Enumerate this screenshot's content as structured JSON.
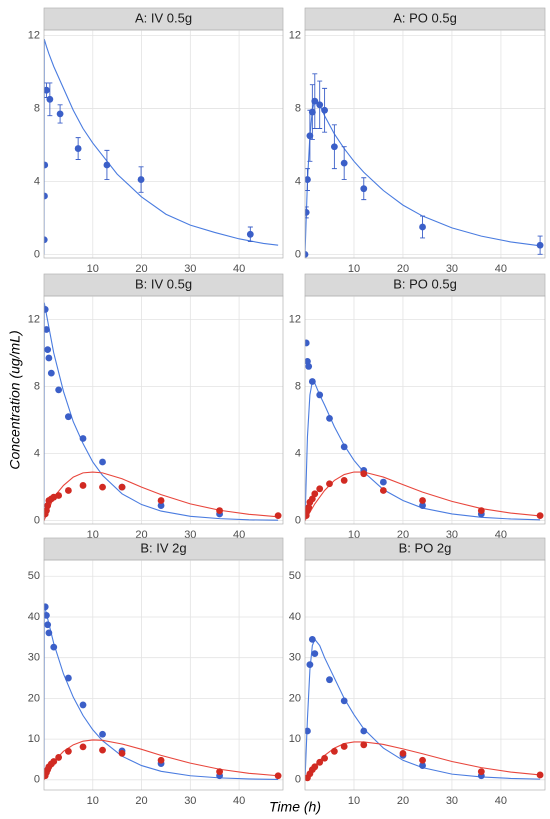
{
  "xlabel": "Time (h)",
  "ylabel": "Concentration (ug/mL)",
  "chart_data": [
    {
      "type": "scatter",
      "title": "A: IV 0.5g",
      "xlim": [
        0,
        49
      ],
      "xticks": [
        10,
        20,
        30,
        40
      ],
      "ylim": [
        -0.2,
        12.3
      ],
      "yticks": [
        0,
        4,
        8,
        12
      ],
      "grid": true,
      "series": [
        {
          "mode": "line",
          "color": "#4a7ce0",
          "x": [
            0,
            0.05,
            0.5,
            1,
            2,
            4,
            6,
            8,
            10,
            15,
            20,
            25,
            30,
            35,
            40,
            45,
            48
          ],
          "values": [
            0,
            11.8,
            11.4,
            11.0,
            10.3,
            9.1,
            7.9,
            6.9,
            6.1,
            4.4,
            3.15,
            2.2,
            1.6,
            1.2,
            0.85,
            0.6,
            0.5
          ]
        },
        {
          "mode": "points",
          "color": "#3b5fc8",
          "x": [
            0.05,
            0.1,
            0.15,
            0.5,
            1.2,
            3.3,
            7,
            12.9,
            19.9,
            42.3
          ],
          "values": [
            0.8,
            3.2,
            4.9,
            9.0,
            8.5,
            7.7,
            5.8,
            4.9,
            4.1,
            1.1
          ],
          "errors": [
            0,
            0,
            0,
            0.4,
            0.9,
            0.5,
            0.6,
            0.8,
            0.7,
            0.4
          ]
        }
      ]
    },
    {
      "type": "scatter",
      "title": "A: PO 0.5g",
      "xlim": [
        0,
        49
      ],
      "xticks": [
        10,
        20,
        30,
        40
      ],
      "ylim": [
        -0.2,
        12.3
      ],
      "yticks": [
        0,
        4,
        8,
        12
      ],
      "grid": true,
      "series": [
        {
          "mode": "line",
          "color": "#4a7ce0",
          "x": [
            0,
            0.5,
            1,
            1.5,
            2,
            3,
            4,
            6,
            8,
            10,
            12,
            16,
            20,
            24,
            30,
            36,
            42,
            48
          ],
          "values": [
            0,
            4.0,
            6.5,
            7.9,
            8.5,
            8.2,
            7.6,
            6.6,
            5.8,
            5.1,
            4.5,
            3.5,
            2.7,
            2.1,
            1.45,
            1.0,
            0.68,
            0.47
          ]
        },
        {
          "mode": "points",
          "color": "#3b5fc8",
          "x": [
            0,
            0.25,
            0.5,
            1,
            1.5,
            2,
            3,
            4,
            6,
            8,
            12,
            24,
            48
          ],
          "values": [
            0,
            2.3,
            4.1,
            6.5,
            7.8,
            8.4,
            8.2,
            7.9,
            5.9,
            5.0,
            3.6,
            1.5,
            0.5
          ],
          "errors": [
            0,
            0.3,
            0.6,
            1.4,
            1.5,
            1.5,
            1.3,
            1.2,
            1.2,
            0.9,
            0.6,
            0.6,
            0.5
          ]
        }
      ]
    },
    {
      "type": "scatter",
      "title": "B: IV 0.5g",
      "xlim": [
        0,
        49
      ],
      "xticks": [
        10,
        20,
        30,
        40
      ],
      "ylim": [
        -0.2,
        13.4
      ],
      "yticks": [
        0,
        4,
        8,
        12
      ],
      "grid": true,
      "series": [
        {
          "mode": "line",
          "color": "#4a7ce0",
          "x": [
            0,
            0.05,
            2,
            4,
            6,
            8,
            10,
            12,
            16,
            20,
            24,
            30,
            36,
            42,
            48
          ],
          "values": [
            0,
            13,
            10,
            7.7,
            5.9,
            4.6,
            3.5,
            2.7,
            1.6,
            0.96,
            0.57,
            0.26,
            0.12,
            0.05,
            0.025
          ]
        },
        {
          "mode": "line",
          "color": "#e8463c",
          "x": [
            0,
            2,
            4,
            6,
            8,
            10,
            12,
            16,
            20,
            24,
            30,
            36,
            42,
            48
          ],
          "values": [
            0,
            1.4,
            2.1,
            2.6,
            2.85,
            2.9,
            2.85,
            2.5,
            2.0,
            1.55,
            1.0,
            0.62,
            0.38,
            0.23
          ]
        },
        {
          "mode": "points",
          "color": "#3b5fc8",
          "x": [
            0.25,
            0.5,
            0.75,
            1,
            1.5,
            3,
            5,
            8,
            12,
            16,
            24,
            36
          ],
          "values": [
            12.6,
            11.4,
            10.2,
            9.7,
            8.8,
            7.8,
            6.2,
            4.9,
            3.5,
            2.0,
            0.9,
            0.4
          ]
        },
        {
          "mode": "points",
          "color": "#d12a22",
          "x": [
            0.25,
            0.5,
            0.75,
            1,
            1.5,
            2,
            3,
            5,
            8,
            12,
            16,
            24,
            36,
            48
          ],
          "values": [
            0.4,
            0.6,
            0.9,
            1.2,
            1.3,
            1.4,
            1.5,
            1.8,
            2.1,
            2.0,
            2.0,
            1.2,
            0.6,
            0.3
          ]
        }
      ]
    },
    {
      "type": "scatter",
      "title": "B: PO 0.5g",
      "xlim": [
        0,
        49
      ],
      "xticks": [
        10,
        20,
        30,
        40
      ],
      "ylim": [
        -0.2,
        13.4
      ],
      "yticks": [
        0,
        4,
        8,
        12
      ],
      "grid": true,
      "series": [
        {
          "mode": "line",
          "color": "#4a7ce0",
          "x": [
            0,
            0.5,
            1,
            1.5,
            2,
            3,
            4,
            6,
            8,
            10,
            12,
            16,
            20,
            24,
            30,
            36,
            42,
            48
          ],
          "values": [
            0,
            5,
            7.5,
            8.3,
            8.2,
            7.5,
            6.9,
            5.6,
            4.5,
            3.6,
            2.9,
            1.85,
            1.2,
            0.75,
            0.4,
            0.2,
            0.1,
            0.05
          ]
        },
        {
          "mode": "line",
          "color": "#e8463c",
          "x": [
            0,
            2,
            4,
            6,
            8,
            10,
            12,
            16,
            20,
            24,
            30,
            36,
            42,
            48
          ],
          "values": [
            0,
            1.0,
            1.8,
            2.4,
            2.75,
            2.9,
            2.9,
            2.6,
            2.15,
            1.7,
            1.15,
            0.72,
            0.45,
            0.28
          ]
        },
        {
          "mode": "points",
          "color": "#3b5fc8",
          "x": [
            0.25,
            0.5,
            0.75,
            1.5,
            3,
            5,
            8,
            12,
            16,
            24,
            36
          ],
          "values": [
            10.6,
            9.5,
            9.2,
            8.3,
            7.5,
            6.1,
            4.4,
            3.0,
            2.3,
            0.9,
            0.4
          ]
        },
        {
          "mode": "points",
          "color": "#d12a22",
          "x": [
            0.25,
            0.5,
            0.75,
            1,
            1.5,
            2,
            3,
            5,
            8,
            12,
            16,
            24,
            36,
            48
          ],
          "values": [
            0.3,
            0.6,
            0.8,
            1.1,
            1.3,
            1.6,
            1.9,
            2.2,
            2.4,
            2.8,
            1.8,
            1.2,
            0.6,
            0.3
          ]
        }
      ]
    },
    {
      "type": "scatter",
      "title": "B: IV 2g",
      "xlim": [
        0,
        49
      ],
      "xticks": [
        10,
        20,
        30,
        40
      ],
      "ylim": [
        -2.5,
        54
      ],
      "yticks": [
        0,
        10,
        20,
        30,
        40,
        50
      ],
      "grid": true,
      "series": [
        {
          "mode": "line",
          "color": "#4a7ce0",
          "x": [
            0,
            0.05,
            2,
            4,
            6,
            8,
            10,
            12,
            16,
            20,
            24,
            30,
            36,
            42,
            48
          ],
          "values": [
            0,
            43,
            33.5,
            26,
            20.3,
            15.8,
            12.3,
            9.6,
            5.8,
            3.5,
            2.1,
            1.0,
            0.48,
            0.22,
            0.1
          ]
        },
        {
          "mode": "line",
          "color": "#e8463c",
          "x": [
            0,
            2,
            4,
            6,
            8,
            10,
            12,
            16,
            20,
            24,
            30,
            36,
            42,
            48
          ],
          "values": [
            0,
            4.5,
            7.0,
            8.6,
            9.5,
            9.8,
            9.7,
            8.8,
            7.5,
            6.0,
            4.1,
            2.6,
            1.6,
            1.0
          ]
        },
        {
          "mode": "points",
          "color": "#3b5fc8",
          "x": [
            0.25,
            0.5,
            0.75,
            1,
            2,
            5,
            8,
            12,
            16,
            24,
            36
          ],
          "values": [
            42.5,
            40.4,
            38.1,
            36.1,
            32.6,
            25,
            18.4,
            11.2,
            7.1,
            4.0,
            1.0
          ]
        },
        {
          "mode": "points",
          "color": "#d12a22",
          "x": [
            0.25,
            0.5,
            0.75,
            1,
            1.5,
            2,
            3,
            5,
            8,
            12,
            16,
            24,
            36,
            48
          ],
          "values": [
            1,
            1.8,
            2.5,
            3.2,
            3.9,
            4.5,
            5.5,
            7,
            8.1,
            7.3,
            6.5,
            4.8,
            2.0,
            1.0
          ]
        }
      ]
    },
    {
      "type": "scatter",
      "title": "B: PO 2g",
      "xlim": [
        0,
        49
      ],
      "xticks": [
        10,
        20,
        30,
        40
      ],
      "ylim": [
        -2.5,
        54
      ],
      "yticks": [
        0,
        10,
        20,
        30,
        40,
        50
      ],
      "grid": true,
      "series": [
        {
          "mode": "line",
          "color": "#4a7ce0",
          "x": [
            0,
            0.5,
            1,
            1.5,
            2,
            3,
            4,
            6,
            8,
            10,
            12,
            16,
            20,
            24,
            30,
            36,
            42,
            48
          ],
          "values": [
            0,
            15,
            27,
            33,
            34.5,
            33,
            30,
            25,
            20,
            16,
            12.5,
            7.8,
            4.8,
            3.0,
            1.4,
            0.7,
            0.35,
            0.17
          ]
        },
        {
          "mode": "line",
          "color": "#e8463c",
          "x": [
            0,
            2,
            4,
            6,
            8,
            10,
            12,
            16,
            20,
            24,
            30,
            36,
            42,
            48
          ],
          "values": [
            0,
            3.5,
            6.0,
            7.8,
            8.9,
            9.3,
            9.3,
            8.7,
            7.6,
            6.4,
            4.5,
            3.0,
            1.9,
            1.2
          ]
        },
        {
          "mode": "points",
          "color": "#3b5fc8",
          "x": [
            0.5,
            1,
            1.5,
            2,
            5,
            8,
            12,
            20,
            24,
            36
          ],
          "values": [
            12,
            28.3,
            34.5,
            31,
            24.6,
            19.4,
            12,
            6,
            3.5,
            1.0
          ]
        },
        {
          "mode": "points",
          "color": "#d12a22",
          "x": [
            0.5,
            1,
            1.5,
            2,
            3,
            4,
            6,
            8,
            12,
            20,
            24,
            36,
            48
          ],
          "values": [
            0.5,
            1.5,
            2.5,
            3.2,
            4.3,
            5.3,
            7,
            8.2,
            8.6,
            6.5,
            4.8,
            2,
            1.2
          ]
        }
      ]
    }
  ]
}
